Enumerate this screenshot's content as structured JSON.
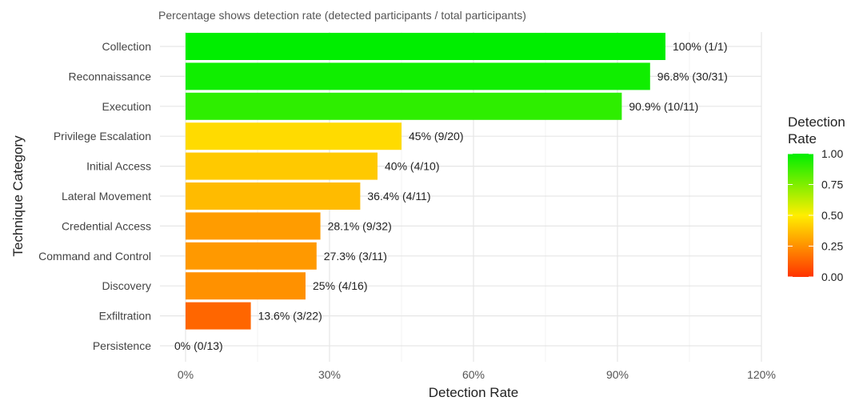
{
  "chart_data": {
    "type": "bar",
    "orientation": "horizontal",
    "title": "",
    "subtitle": "Percentage shows detection rate (detected participants / total participants)",
    "xlabel": "Detection Rate",
    "ylabel": "Technique Category",
    "xlim": [
      0,
      120
    ],
    "xticks": [
      0,
      30,
      60,
      90,
      120
    ],
    "xtick_labels": [
      "0%",
      "30%",
      "60%",
      "90%",
      "120%"
    ],
    "grid": true,
    "categories": [
      "Collection",
      "Reconnaissance",
      "Execution",
      "Privilege Escalation",
      "Initial Access",
      "Lateral Movement",
      "Credential Access",
      "Command and Control",
      "Discovery",
      "Exfiltration",
      "Persistence"
    ],
    "values": [
      100,
      96.8,
      90.9,
      45,
      40,
      36.4,
      28.1,
      27.3,
      25,
      13.6,
      0
    ],
    "data_labels": [
      "100% (1/1)",
      "96.8% (30/31)",
      "90.9% (10/11)",
      "45% (9/20)",
      "40% (4/10)",
      "36.4% (4/11)",
      "28.1% (9/32)",
      "27.3% (3/11)",
      "25% (4/16)",
      "13.6% (3/22)",
      "0% (0/13)"
    ],
    "legend": {
      "title_lines": [
        "Detection",
        "Rate"
      ],
      "placement": "right",
      "ticks": [
        "1.00",
        "0.75",
        "0.50",
        "0.25",
        "0.00"
      ],
      "color_stops": [
        {
          "value": 0,
          "color": "#ff3300"
        },
        {
          "value": 0.5,
          "color": "#ffee00"
        },
        {
          "value": 1,
          "color": "#00ee00"
        }
      ]
    }
  }
}
